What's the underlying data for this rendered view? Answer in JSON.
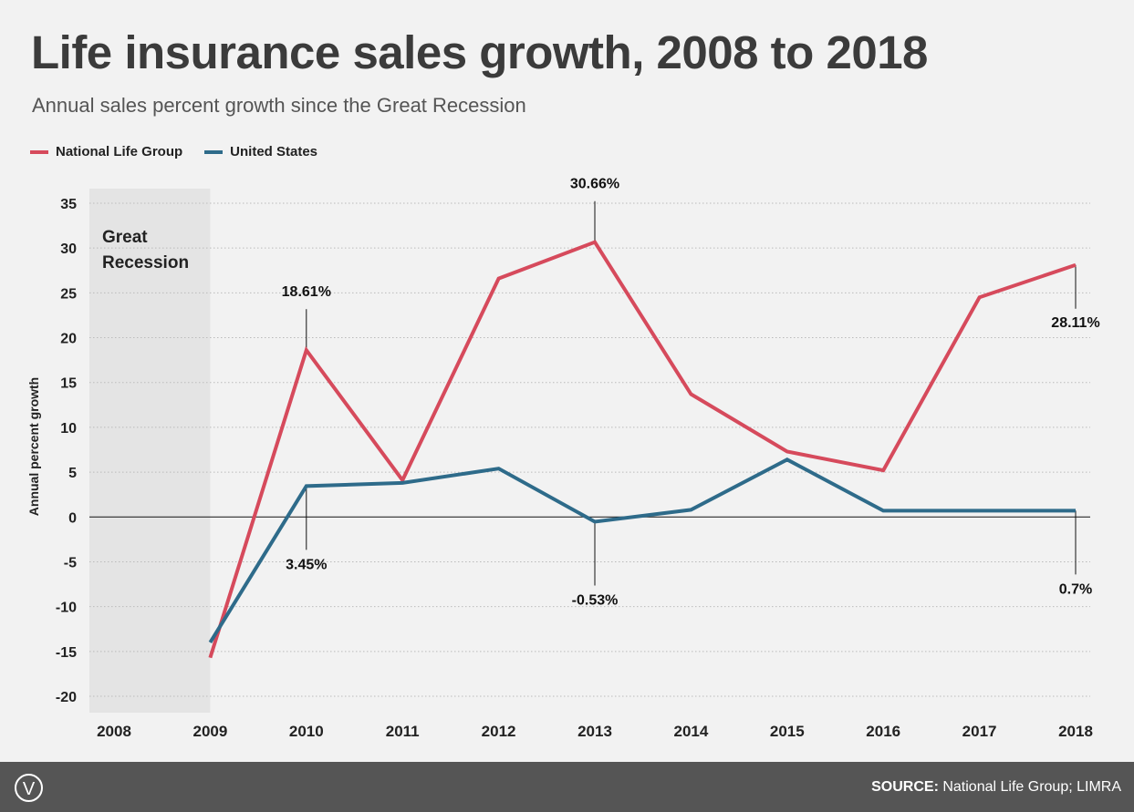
{
  "chart_data": {
    "type": "line",
    "title": "Life insurance sales growth, 2008 to 2018",
    "subtitle": "Annual sales percent growth since the Great Recession",
    "ylabel": "Annual percent growth",
    "xlabel": "",
    "ylim": [
      -20,
      35
    ],
    "yticks": [
      35,
      30,
      25,
      20,
      15,
      10,
      5,
      0,
      -5,
      -10,
      -15,
      -20
    ],
    "categories": [
      "2008",
      "2009",
      "2010",
      "2011",
      "2012",
      "2013",
      "2014",
      "2015",
      "2016",
      "2017",
      "2018"
    ],
    "grid": true,
    "legend_position": "top-left",
    "shaded_region": {
      "label_line1": "Great",
      "label_line2": "Recession",
      "from": "2008",
      "to": "2009",
      "color": "#e4e4e4"
    },
    "series": [
      {
        "name": "National Life Group",
        "color": "#d64a5c",
        "values": [
          null,
          -15.7,
          18.61,
          4.1,
          26.6,
          30.66,
          13.7,
          7.3,
          5.2,
          24.5,
          28.11
        ]
      },
      {
        "name": "United States",
        "color": "#2e6b8a",
        "values": [
          null,
          -14.0,
          3.45,
          3.8,
          5.4,
          -0.53,
          0.8,
          6.4,
          0.7,
          0.7,
          0.7
        ]
      }
    ],
    "annotations": [
      {
        "series": 0,
        "year": "2010",
        "label": "18.61%",
        "side": "above"
      },
      {
        "series": 1,
        "year": "2010",
        "label": "3.45%",
        "side": "below"
      },
      {
        "series": 0,
        "year": "2013",
        "label": "30.66%",
        "side": "above"
      },
      {
        "series": 1,
        "year": "2013",
        "label": "-0.53%",
        "side": "below"
      },
      {
        "series": 0,
        "year": "2018",
        "label": "28.11%",
        "side": "below"
      },
      {
        "series": 1,
        "year": "2018",
        "label": "0.7%",
        "side": "below"
      }
    ]
  },
  "footer": {
    "source_label": "SOURCE:",
    "source_text": " National Life Group; LIMRA",
    "logo_text": "V"
  }
}
